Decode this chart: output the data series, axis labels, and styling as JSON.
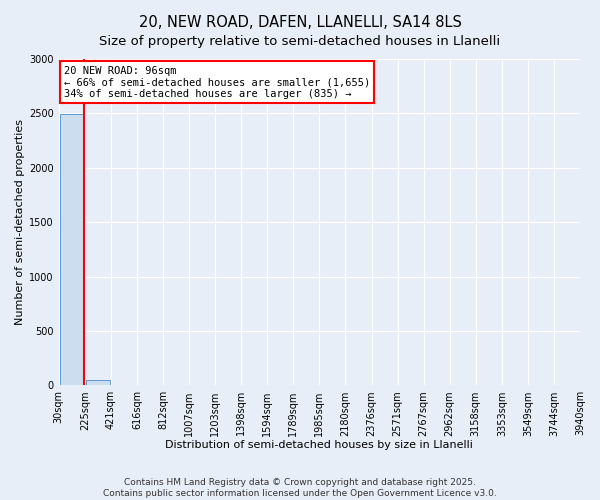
{
  "title": "20, NEW ROAD, DAFEN, LLANELLI, SA14 8LS",
  "subtitle": "Size of property relative to semi-detached houses in Llanelli",
  "xlabel": "Distribution of semi-detached houses by size in Llanelli",
  "ylabel": "Number of semi-detached properties",
  "footer": "Contains HM Land Registry data © Crown copyright and database right 2025.\nContains public sector information licensed under the Open Government Licence v3.0.",
  "bar_values": [
    2490,
    50,
    2,
    1,
    1,
    0,
    0,
    0,
    0,
    0,
    0,
    0,
    0,
    0,
    0,
    0,
    0,
    0,
    0,
    0
  ],
  "bin_labels": [
    "30sqm",
    "225sqm",
    "421sqm",
    "616sqm",
    "812sqm",
    "1007sqm",
    "1203sqm",
    "1398sqm",
    "1594sqm",
    "1789sqm",
    "1985sqm",
    "2180sqm",
    "2376sqm",
    "2571sqm",
    "2767sqm",
    "2962sqm",
    "3158sqm",
    "3353sqm",
    "3549sqm",
    "3744sqm",
    "3940sqm"
  ],
  "bar_color": "#ccddf0",
  "bar_edge_color": "#5b9bd5",
  "annotation_line1": "20 NEW ROAD: 96sqm",
  "annotation_line2": "← 66% of semi-detached houses are smaller (1,655)",
  "annotation_line3": "34% of semi-detached houses are larger (835) →",
  "property_bar_index": 0,
  "property_line_x": 0.5,
  "ylim": [
    0,
    3000
  ],
  "yticks": [
    0,
    500,
    1000,
    1500,
    2000,
    2500,
    3000
  ],
  "bg_color": "#e8eef8",
  "grid_color": "#ffffff",
  "title_fontsize": 10.5,
  "subtitle_fontsize": 9.5,
  "axis_fontsize": 8,
  "tick_fontsize": 7,
  "footer_fontsize": 6.5
}
